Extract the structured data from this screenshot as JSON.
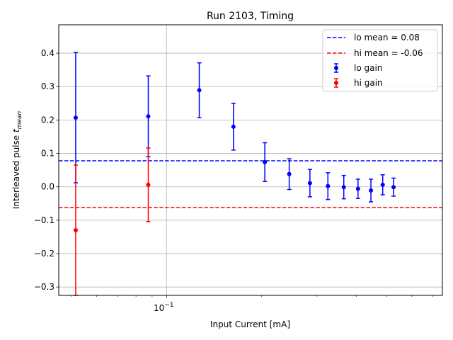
{
  "chart_data": {
    "type": "scatter",
    "title": "Run 2103, Timing",
    "xlabel": "Input Current [mA]",
    "ylabel_prefix": "Interleaved pulse ",
    "ylabel_symbol": "t",
    "ylabel_subscript": "mean",
    "xscale": "log",
    "xlim": [
      0.0455,
      0.75
    ],
    "ylim": [
      -0.325,
      0.485
    ],
    "grid": true,
    "legend_position": "top-right",
    "x_major_ticks": [
      {
        "value": 0.1,
        "base": "10",
        "exponent": "−1"
      }
    ],
    "y_ticks": [
      {
        "value": -0.3,
        "label": "−0.3"
      },
      {
        "value": -0.2,
        "label": "−0.2"
      },
      {
        "value": -0.1,
        "label": "−0.1"
      },
      {
        "value": 0.0,
        "label": "0.0"
      },
      {
        "value": 0.1,
        "label": "0.1"
      },
      {
        "value": 0.2,
        "label": "0.2"
      },
      {
        "value": 0.3,
        "label": "0.3"
      },
      {
        "value": 0.4,
        "label": "0.4"
      }
    ],
    "hlines": [
      {
        "name": "lo mean = 0.08",
        "y": 0.078,
        "color": "#0000ff",
        "style": "dashed"
      },
      {
        "name": "hi mean = -0.06",
        "y": -0.062,
        "color": "#ff0000",
        "style": "dashed"
      }
    ],
    "series": [
      {
        "name": "lo gain",
        "color": "#0000ff",
        "points": [
          {
            "x": 0.0515,
            "y": 0.207,
            "err": 0.195
          },
          {
            "x": 0.0875,
            "y": 0.211,
            "err": 0.121
          },
          {
            "x": 0.127,
            "y": 0.289,
            "err": 0.082
          },
          {
            "x": 0.163,
            "y": 0.18,
            "err": 0.07
          },
          {
            "x": 0.205,
            "y": 0.074,
            "err": 0.058
          },
          {
            "x": 0.245,
            "y": 0.038,
            "err": 0.046
          },
          {
            "x": 0.285,
            "y": 0.011,
            "err": 0.041
          },
          {
            "x": 0.325,
            "y": 0.002,
            "err": 0.04
          },
          {
            "x": 0.365,
            "y": -0.001,
            "err": 0.035
          },
          {
            "x": 0.405,
            "y": -0.006,
            "err": 0.029
          },
          {
            "x": 0.445,
            "y": -0.011,
            "err": 0.034
          },
          {
            "x": 0.485,
            "y": 0.006,
            "err": 0.03
          },
          {
            "x": 0.525,
            "y": -0.001,
            "err": 0.027
          }
        ]
      },
      {
        "name": "hi gain",
        "color": "#ff0000",
        "points": [
          {
            "x": 0.0515,
            "y": -0.13,
            "err": 0.195
          },
          {
            "x": 0.0875,
            "y": 0.006,
            "err": 0.11
          }
        ]
      }
    ]
  }
}
